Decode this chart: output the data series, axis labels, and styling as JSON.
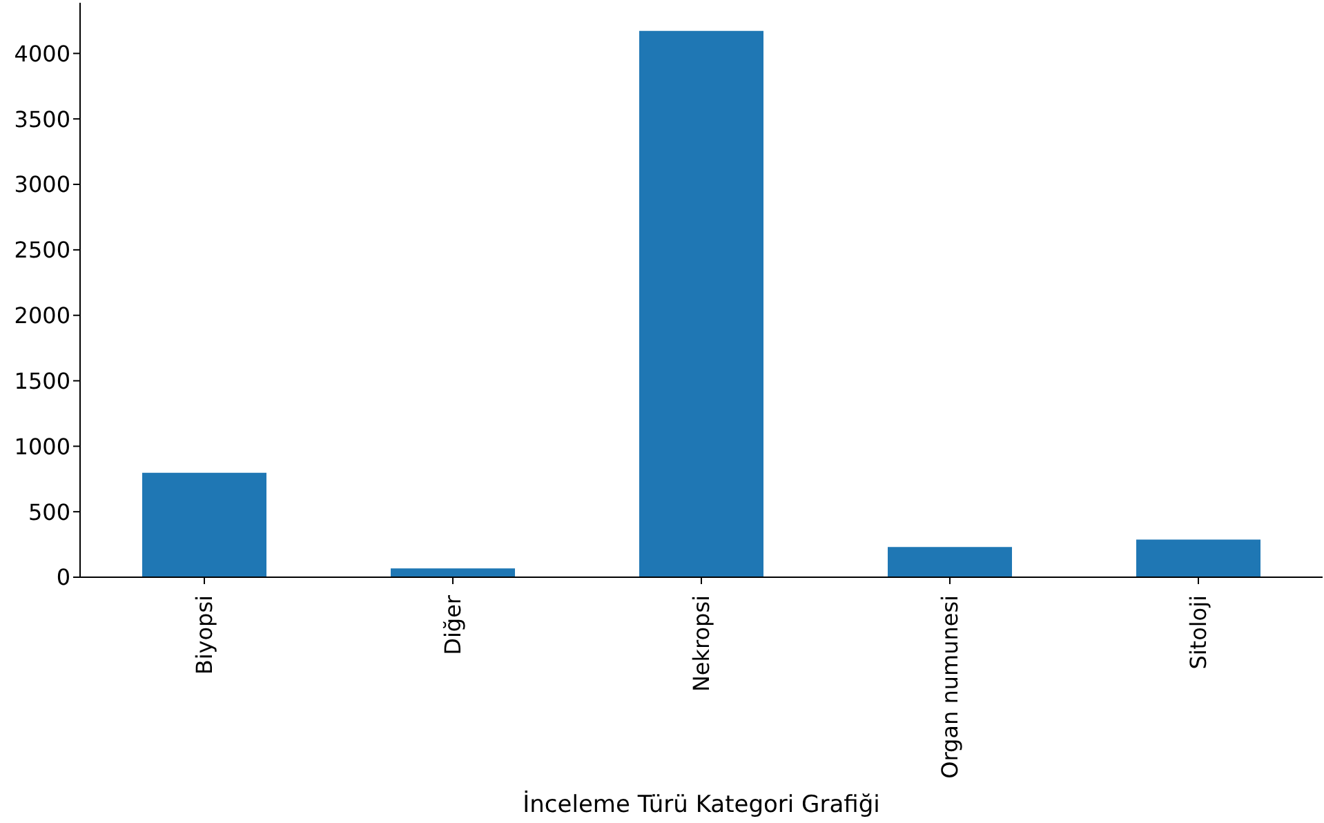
{
  "chart_data": {
    "type": "bar",
    "xlabel": "İnceleme Türü Kategori Grafiği",
    "categories": [
      "Biyopsi",
      "Diğer",
      "Nekropsi",
      "Organ numunesi",
      "Sitoloji"
    ],
    "values": [
      798,
      67,
      4172,
      231,
      287
    ],
    "color": "#1f77b4",
    "ylim": [
      0,
      4387
    ],
    "yticks": [
      0,
      500,
      1000,
      1500,
      2000,
      2500,
      3000,
      3500,
      4000
    ],
    "grid": false,
    "legend": false
  }
}
